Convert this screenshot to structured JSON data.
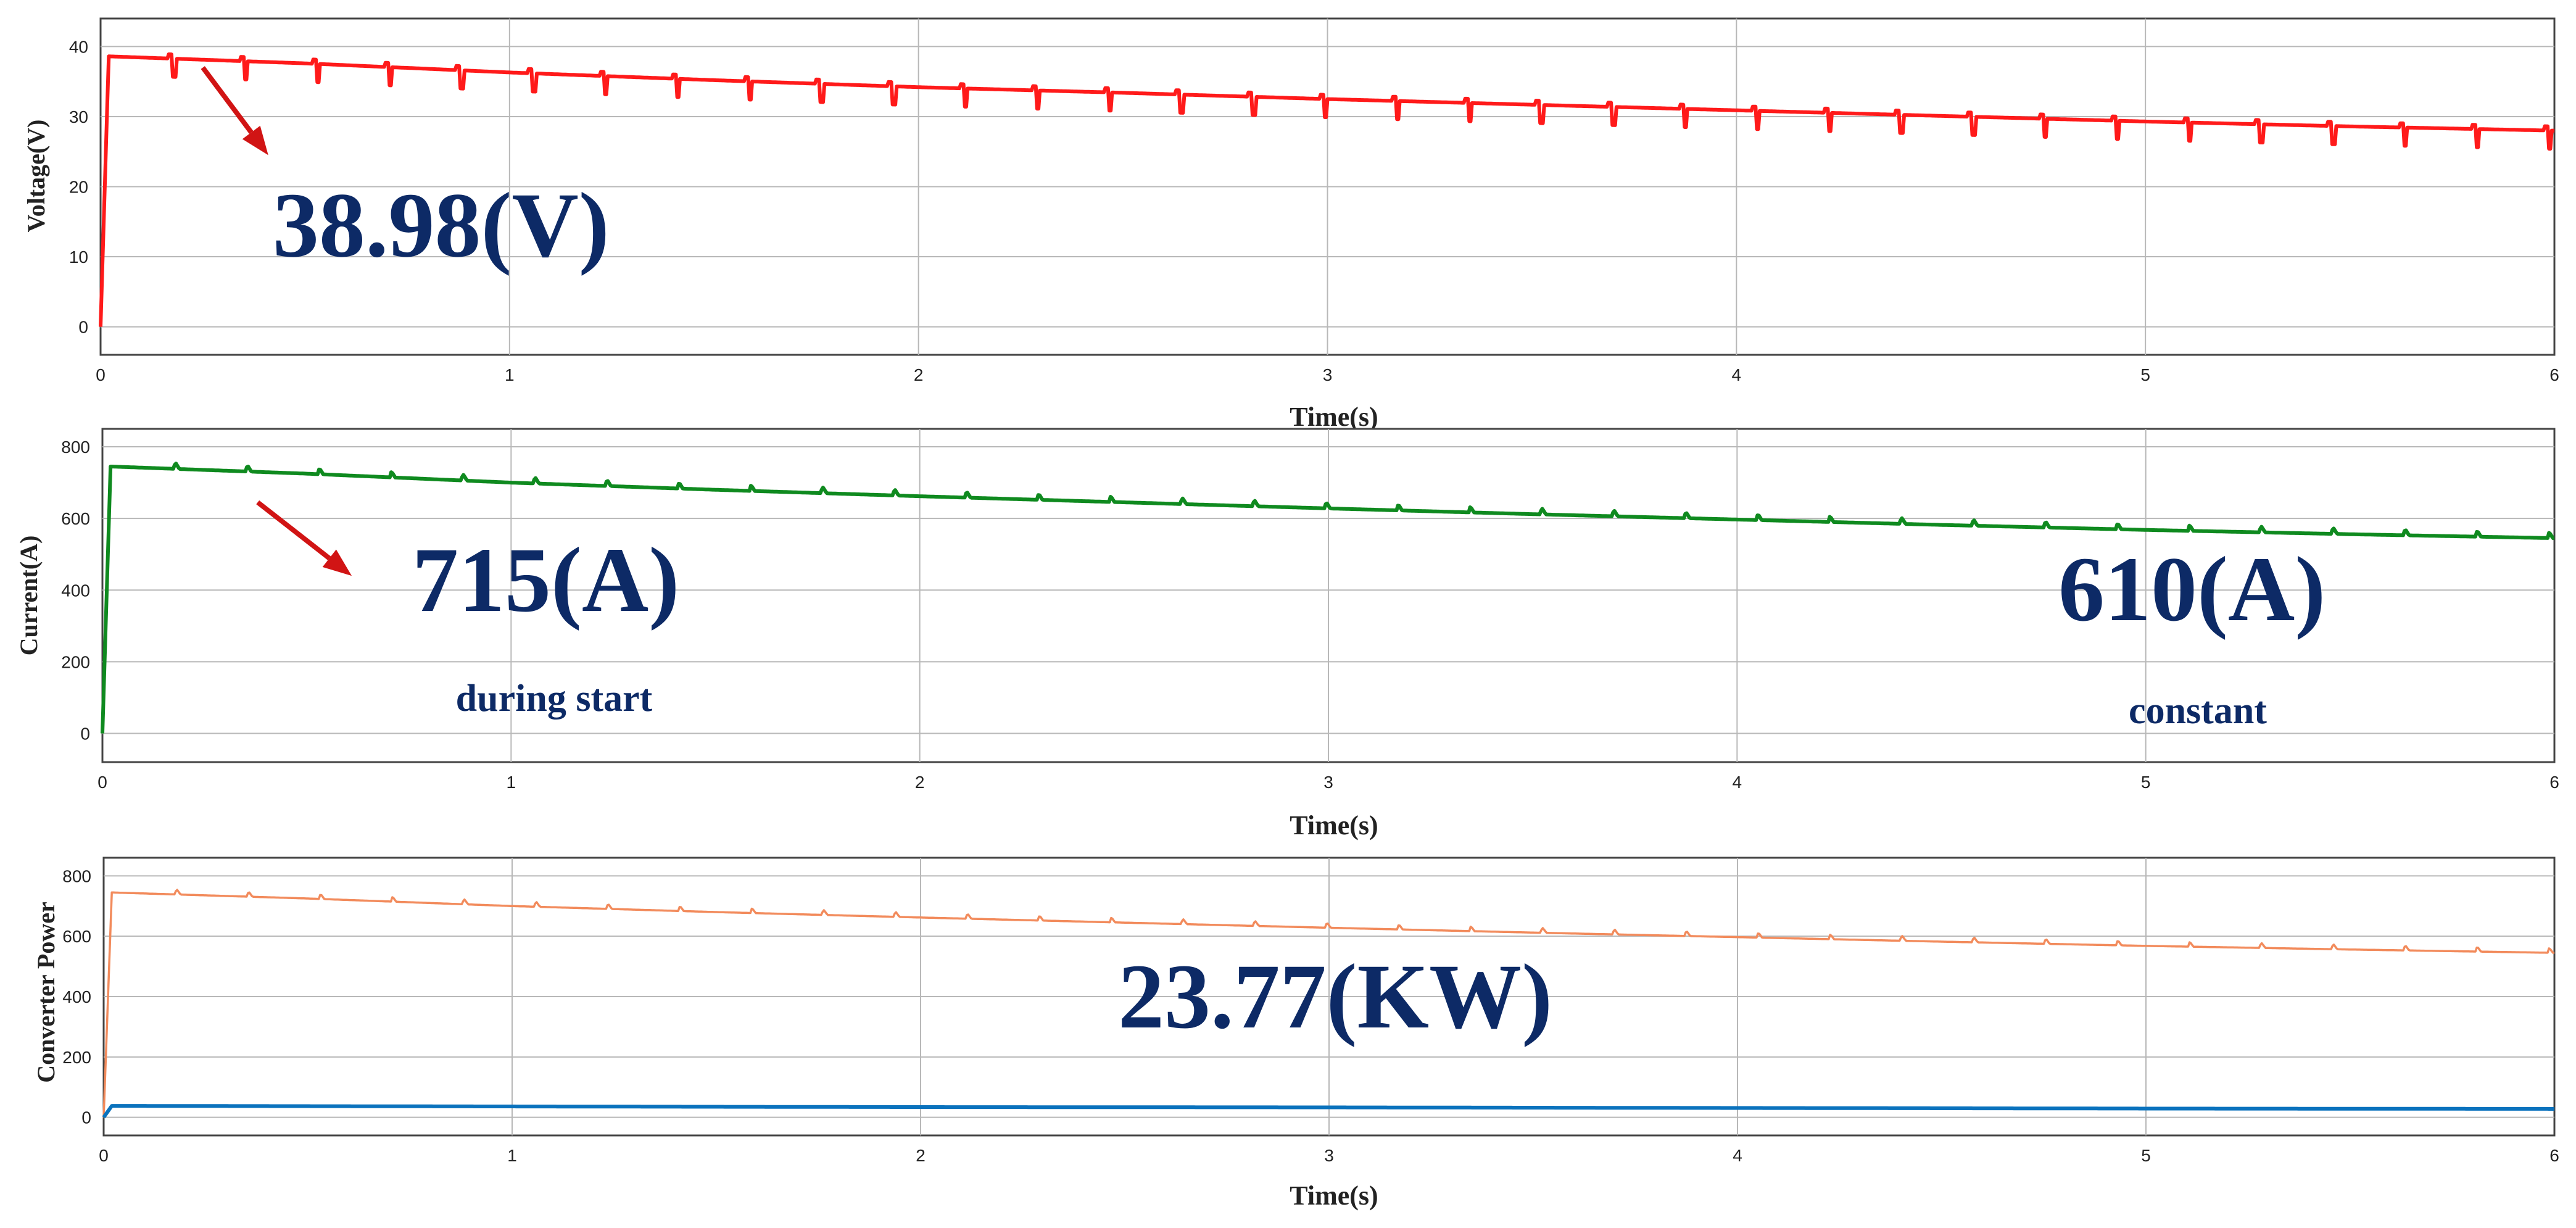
{
  "chart_data": [
    {
      "type": "line",
      "ylabel": "Voltage(V)",
      "xlabel": "Time(s)",
      "xlim": [
        0,
        6
      ],
      "ylim": [
        -4,
        44
      ],
      "xticks": [
        0,
        1,
        2,
        3,
        4,
        5,
        6
      ],
      "yticks": [
        0,
        10,
        20,
        30,
        40
      ],
      "grid": true,
      "series": [
        {
          "color": "#ff1a1a",
          "x": [
            0,
            0.02,
            0.5,
            1,
            1.5,
            2,
            2.5,
            3,
            3.5,
            4,
            4.5,
            5,
            5.5,
            6
          ],
          "values": [
            0,
            38.6,
            37.6,
            36.3,
            35.2,
            34.2,
            33.4,
            32.5,
            31.7,
            30.9,
            30.1,
            29.3,
            28.6,
            28.0
          ],
          "ripple_period": 0.176,
          "ripple_depth": 2.6
        }
      ],
      "annotations": [
        {
          "text": "38.98(V)",
          "style": "big"
        }
      ],
      "arrows": [
        {
          "from": [
            0.25,
            37
          ],
          "to": [
            0.41,
            24.5
          ]
        }
      ]
    },
    {
      "type": "line",
      "ylabel": "Current(A)",
      "xlabel": "Time(s)",
      "xlim": [
        0,
        6
      ],
      "ylim": [
        -80,
        850
      ],
      "xticks": [
        0,
        1,
        2,
        3,
        4,
        5,
        6
      ],
      "yticks": [
        0,
        200,
        400,
        600,
        800
      ],
      "grid": true,
      "series": [
        {
          "color": "#0f8a1f",
          "x": [
            0,
            0.02,
            0.5,
            1,
            1.5,
            2,
            2.5,
            3,
            3.5,
            4,
            4.5,
            5,
            5.5,
            6
          ],
          "values": [
            0,
            745,
            725,
            700,
            680,
            662,
            645,
            628,
            612,
            597,
            582,
            568,
            556,
            545
          ],
          "bump_period": 0.176,
          "bump_height": 16
        }
      ],
      "annotations": [
        {
          "text": "715(A)",
          "style": "big"
        },
        {
          "text": "during start",
          "style": "small"
        },
        {
          "text": "610(A)",
          "style": "big"
        },
        {
          "text": "constant",
          "style": "small"
        }
      ],
      "arrows": [
        {
          "from": [
            0.38,
            645
          ],
          "to": [
            0.61,
            440
          ]
        }
      ]
    },
    {
      "type": "line",
      "ylabel": "Converter Power",
      "xlabel": "Time(s)",
      "xlim": [
        0,
        6
      ],
      "ylim": [
        -60,
        860
      ],
      "xticks": [
        0,
        1,
        2,
        3,
        4,
        5,
        6
      ],
      "yticks": [
        0,
        200,
        400,
        600,
        800
      ],
      "grid": true,
      "series": [
        {
          "color": "#f28b5c",
          "x": [
            0,
            0.02,
            0.5,
            1,
            1.5,
            2,
            2.5,
            3,
            3.5,
            4,
            4.5,
            5,
            5.5,
            6
          ],
          "values": [
            0,
            745,
            725,
            700,
            680,
            662,
            645,
            628,
            612,
            597,
            582,
            568,
            556,
            545
          ],
          "bump_period": 0.176,
          "bump_height": 16
        },
        {
          "color": "#0a72bd",
          "x": [
            0,
            0.02,
            1,
            2,
            3,
            4,
            5,
            6
          ],
          "values": [
            0,
            38,
            36,
            34,
            33,
            31,
            29,
            28
          ]
        }
      ],
      "annotations": [
        {
          "text": "23.77(KW)",
          "style": "big"
        }
      ]
    }
  ]
}
